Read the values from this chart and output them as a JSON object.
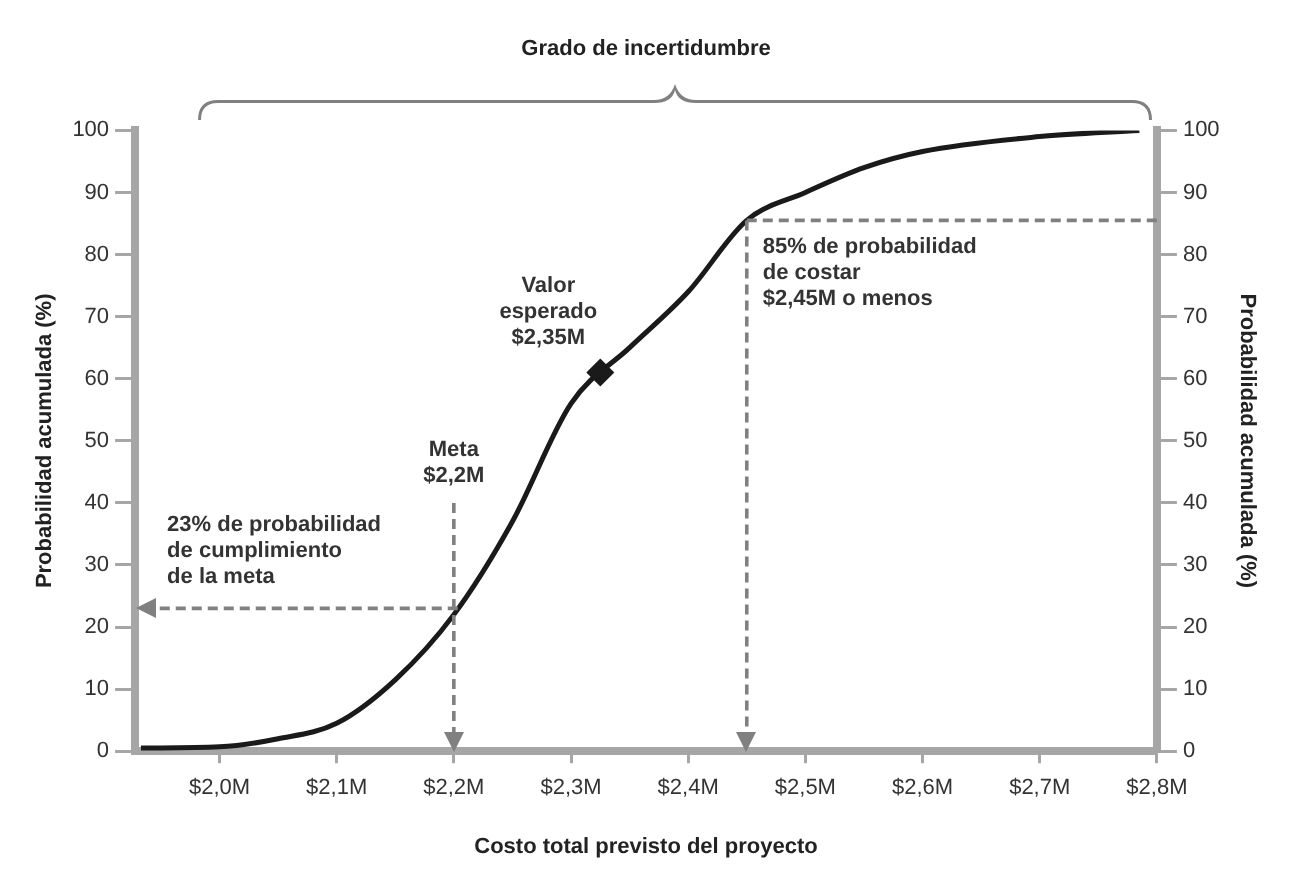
{
  "chart_data": {
    "type": "line",
    "xlabel": "Costo total previsto del proyecto",
    "ylabel": "Probabilidad acumulada (%)",
    "y2label": "Probabilidad acumulada (%)",
    "xlim": [
      1.928,
      2.8
    ],
    "xticks": [
      {
        "value": 2.0,
        "label": "$2,0M"
      },
      {
        "value": 2.1,
        "label": "$2,1M"
      },
      {
        "value": 2.2,
        "label": "$2,2M"
      },
      {
        "value": 2.3,
        "label": "$2,3M"
      },
      {
        "value": 2.4,
        "label": "$2,4M"
      },
      {
        "value": 2.5,
        "label": "$2,5M"
      },
      {
        "value": 2.6,
        "label": "$2,6M"
      },
      {
        "value": 2.7,
        "label": "$2,7M"
      },
      {
        "value": 2.8,
        "label": "$2,8M"
      }
    ],
    "ylim": [
      0,
      100
    ],
    "yticks": [
      0,
      10,
      20,
      30,
      40,
      50,
      60,
      70,
      80,
      90,
      100
    ],
    "y2lim": [
      0,
      100
    ],
    "y2ticks": [
      0,
      10,
      20,
      30,
      40,
      50,
      60,
      70,
      80,
      90,
      100
    ],
    "series": [
      {
        "color": "#1a1a1a",
        "marker": "none",
        "x": [
          1.933,
          2.0,
          2.05,
          2.1,
          2.15,
          2.2,
          2.25,
          2.3,
          2.35,
          2.4,
          2.45,
          2.5,
          2.55,
          2.6,
          2.7,
          2.785
        ],
        "values": [
          0.5,
          0.7,
          2,
          4.5,
          11.5,
          22,
          37,
          56,
          65,
          74,
          85.5,
          90,
          94,
          96.6,
          99,
          100
        ]
      },
      {
        "type": "scatter",
        "color": "#1a1a1a",
        "marker": "diamond",
        "x": [
          2.325
        ],
        "values": [
          61
        ]
      }
    ],
    "ref_lines": [
      {
        "axis": "x",
        "value": 2.2,
        "label": "Meta\n$2,2M",
        "color": "#808080",
        "line_style": "dashed"
      },
      {
        "axis": "x",
        "value": 2.45,
        "color": "#808080",
        "line_style": "dashed"
      },
      {
        "axis": "y",
        "value": 23,
        "label": "23% de probabilidad\nde cumplimiento\nde la meta",
        "color": "#808080",
        "line_style": "dashed"
      },
      {
        "axis": "y",
        "value": 85.5,
        "label": "85% de probabilidad\nde costar\n$2,45M o menos",
        "color": "#808080",
        "line_style": "dashed"
      }
    ],
    "title": "Grado de incertidumbre",
    "annotations": [
      {
        "text": "Valor\nesperado\n$2,35M",
        "x": 2.325,
        "y": 61
      }
    ],
    "grid": false,
    "legend": false
  }
}
